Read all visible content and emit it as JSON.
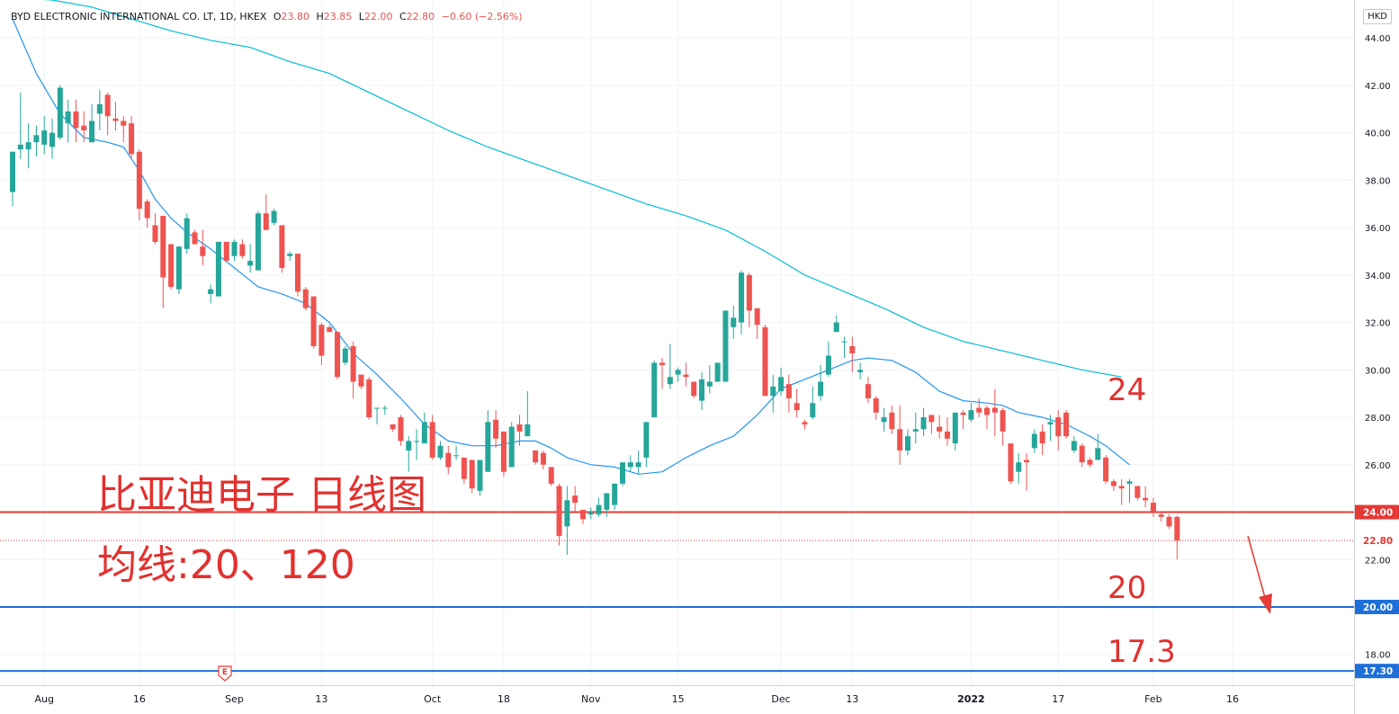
{
  "legend": {
    "symbol": "BYD ELECTRONIC INTERNATIONAL CO. LT, 1D, HKEX",
    "o_label": "O",
    "o_val": "23.80",
    "h_label": "H",
    "h_val": "23.85",
    "l_label": "L",
    "l_val": "22.00",
    "c_label": "C",
    "c_val": "22.80",
    "change": "−0.60 (−2.56%)"
  },
  "currency": "HKD",
  "annotations": {
    "title_cn": "比亚迪电子 日线图",
    "ma_cn": "均线:20、120",
    "label_24": "24",
    "label_20": "20",
    "label_17": "17.3"
  },
  "earnings_marker": "E",
  "colors": {
    "up": "#26a69a",
    "down": "#ef5350",
    "ma20": "#2196f3",
    "ma120": "#00bcd4",
    "red_line": "#e53935",
    "blue_line": "#1e6fd9",
    "annotation": "#e2312e"
  },
  "chart_data": {
    "type": "candlestick",
    "title": "",
    "ylim": [
      16.7,
      45.6
    ],
    "y_ticks": [
      18,
      20,
      22,
      24,
      26,
      28,
      30,
      32,
      34,
      36,
      38,
      40,
      42,
      44
    ],
    "y_tick_labels": [
      "18.00",
      "20.00",
      "22.00",
      "24.00",
      "26.00",
      "28.00",
      "30.00",
      "32.00",
      "34.00",
      "36.00",
      "38.00",
      "40.00",
      "42.00",
      "44.00"
    ],
    "x_ticks": [
      {
        "bar": 4,
        "label": "Aug"
      },
      {
        "bar": 16,
        "label": "16"
      },
      {
        "bar": 28,
        "label": "Sep"
      },
      {
        "bar": 39,
        "label": "13"
      },
      {
        "bar": 53,
        "label": "Oct"
      },
      {
        "bar": 62,
        "label": "18"
      },
      {
        "bar": 73,
        "label": "Nov"
      },
      {
        "bar": 84,
        "label": "15"
      },
      {
        "bar": 97,
        "label": "Dec"
      },
      {
        "bar": 106,
        "label": "13"
      },
      {
        "bar": 121,
        "label": "2022"
      },
      {
        "bar": 132,
        "label": "17"
      },
      {
        "bar": 144,
        "label": "Feb"
      },
      {
        "bar": 154,
        "label": "16"
      }
    ],
    "candles": [
      [
        37.5,
        39.2,
        36.9,
        39.2
      ],
      [
        39.3,
        41.7,
        38.9,
        39.5
      ],
      [
        39.3,
        40.4,
        38.5,
        39.6
      ],
      [
        39.6,
        40.3,
        39.0,
        39.9
      ],
      [
        39.5,
        40.7,
        39.1,
        40.1
      ],
      [
        39.4,
        40.6,
        38.9,
        40.0
      ],
      [
        39.8,
        42.0,
        39.7,
        41.9
      ],
      [
        40.4,
        41.4,
        39.6,
        40.9
      ],
      [
        40.9,
        41.4,
        39.6,
        40.2
      ],
      [
        40.3,
        40.9,
        39.6,
        40.1
      ],
      [
        39.6,
        41.2,
        39.6,
        40.5
      ],
      [
        40.8,
        41.8,
        40.1,
        41.2
      ],
      [
        41.6,
        41.7,
        39.9,
        40.7
      ],
      [
        40.6,
        41.3,
        40.1,
        40.5
      ],
      [
        40.5,
        40.7,
        39.6,
        40.3
      ],
      [
        40.4,
        40.7,
        38.9,
        39.1
      ],
      [
        39.2,
        39.3,
        36.3,
        36.8
      ],
      [
        37.1,
        37.2,
        36.0,
        36.4
      ],
      [
        36.1,
        36.6,
        35.3,
        35.4
      ],
      [
        36.5,
        36.4,
        32.6,
        33.9
      ],
      [
        35.3,
        35.3,
        33.4,
        33.5
      ],
      [
        33.4,
        35.2,
        33.2,
        35.2
      ],
      [
        35.1,
        36.6,
        34.9,
        36.4
      ],
      [
        35.8,
        35.9,
        35.3,
        35.3
      ],
      [
        35.2,
        35.9,
        34.4,
        34.8
      ],
      [
        33.2,
        33.6,
        32.8,
        33.4
      ],
      [
        33.1,
        35.4,
        33.1,
        35.4
      ],
      [
        35.4,
        35.4,
        34.6,
        34.6
      ],
      [
        34.8,
        35.5,
        34.6,
        35.4
      ],
      [
        35.3,
        35.5,
        34.7,
        34.8
      ],
      [
        34.4,
        35.3,
        34.1,
        34.6
      ],
      [
        34.2,
        36.7,
        34.2,
        36.6
      ],
      [
        36.6,
        37.4,
        35.9,
        35.9
      ],
      [
        36.2,
        36.8,
        36.1,
        36.7
      ],
      [
        36.1,
        36.1,
        34.1,
        34.3
      ],
      [
        34.8,
        35.0,
        34.6,
        34.9
      ],
      [
        34.9,
        34.9,
        33.1,
        33.3
      ],
      [
        33.4,
        33.5,
        32.5,
        32.6
      ],
      [
        33.1,
        33.1,
        30.9,
        31.0
      ],
      [
        31.9,
        32.0,
        30.2,
        30.6
      ],
      [
        31.8,
        31.9,
        31.6,
        31.6
      ],
      [
        31.6,
        31.6,
        29.6,
        29.7
      ],
      [
        30.3,
        31.0,
        30.2,
        30.9
      ],
      [
        31.0,
        31.2,
        28.8,
        29.5
      ],
      [
        29.8,
        29.7,
        29.2,
        29.3
      ],
      [
        29.6,
        29.7,
        27.9,
        28.0
      ],
      [
        28.4,
        28.4,
        27.7,
        28.4
      ],
      [
        28.4,
        28.5,
        28.1,
        28.4
      ],
      [
        27.7,
        27.7,
        27.4,
        27.5
      ],
      [
        28.0,
        28.1,
        26.8,
        27.0
      ],
      [
        26.6,
        27.2,
        25.7,
        27.0
      ],
      [
        27.0,
        27.5,
        26.2,
        27.0
      ],
      [
        26.9,
        28.2,
        26.9,
        27.8
      ],
      [
        27.8,
        28.1,
        26.2,
        26.3
      ],
      [
        26.3,
        27.0,
        26.2,
        26.8
      ],
      [
        26.5,
        26.8,
        25.6,
        25.9
      ],
      [
        26.4,
        26.8,
        26.2,
        26.4
      ],
      [
        26.3,
        26.3,
        25.2,
        25.4
      ],
      [
        26.2,
        26.2,
        24.8,
        25.0
      ],
      [
        24.9,
        26.2,
        24.7,
        26.2
      ],
      [
        25.7,
        28.3,
        25.7,
        27.8
      ],
      [
        27.9,
        28.3,
        26.7,
        27.1
      ],
      [
        27.4,
        27.4,
        25.5,
        25.7
      ],
      [
        25.9,
        27.8,
        25.9,
        27.6
      ],
      [
        27.7,
        28.1,
        26.8,
        27.4
      ],
      [
        27.2,
        29.1,
        27.2,
        27.7
      ],
      [
        26.6,
        26.6,
        26.0,
        26.1
      ],
      [
        26.5,
        26.6,
        25.8,
        26.0
      ],
      [
        25.9,
        25.9,
        25.1,
        25.2
      ],
      [
        25.1,
        25.2,
        22.6,
        23.0
      ],
      [
        23.4,
        25.1,
        22.2,
        24.5
      ],
      [
        24.7,
        25.1,
        24.0,
        24.4
      ],
      [
        24.1,
        24.1,
        23.5,
        23.7
      ],
      [
        23.9,
        24.2,
        23.7,
        24.0
      ],
      [
        23.9,
        24.6,
        23.8,
        24.3
      ],
      [
        24.1,
        24.7,
        23.8,
        24.8
      ],
      [
        24.3,
        25.2,
        24.1,
        25.2
      ],
      [
        25.2,
        26.1,
        25.1,
        26.1
      ],
      [
        25.9,
        26.4,
        25.7,
        26.1
      ],
      [
        25.9,
        26.6,
        25.6,
        26.1
      ],
      [
        26.3,
        27.8,
        25.9,
        27.8
      ],
      [
        28.0,
        30.4,
        28.0,
        30.3
      ],
      [
        30.3,
        30.5,
        29.2,
        30.2
      ],
      [
        29.4,
        31.1,
        29.2,
        29.7
      ],
      [
        29.8,
        30.1,
        29.5,
        30.0
      ],
      [
        29.8,
        30.3,
        29.3,
        29.7
      ],
      [
        29.5,
        29.5,
        28.8,
        28.9
      ],
      [
        28.7,
        29.9,
        28.3,
        29.6
      ],
      [
        29.3,
        30.2,
        29.0,
        29.5
      ],
      [
        29.5,
        30.3,
        29.5,
        30.3
      ],
      [
        29.5,
        32.5,
        29.5,
        32.5
      ],
      [
        31.8,
        32.7,
        31.3,
        32.2
      ],
      [
        32.0,
        34.2,
        31.5,
        34.1
      ],
      [
        34.0,
        34.1,
        31.8,
        32.5
      ],
      [
        32.6,
        32.6,
        31.3,
        31.9
      ],
      [
        31.8,
        31.9,
        28.9,
        28.9
      ],
      [
        28.9,
        29.8,
        28.2,
        29.3
      ],
      [
        29.1,
        30.1,
        28.9,
        29.7
      ],
      [
        29.4,
        29.8,
        28.2,
        28.8
      ],
      [
        28.6,
        29.2,
        28.0,
        28.3
      ],
      [
        27.8,
        27.9,
        27.5,
        27.7
      ],
      [
        28.0,
        29.3,
        27.9,
        28.6
      ],
      [
        28.9,
        30.2,
        28.7,
        29.5
      ],
      [
        29.8,
        31.2,
        29.7,
        30.6
      ],
      [
        31.6,
        32.3,
        31.6,
        32.0
      ],
      [
        31.2,
        31.4,
        30.5,
        31.2
      ],
      [
        31.0,
        31.4,
        29.9,
        30.7
      ],
      [
        29.9,
        30.3,
        29.6,
        30.0
      ],
      [
        29.4,
        29.7,
        28.6,
        28.8
      ],
      [
        28.8,
        28.9,
        27.9,
        28.2
      ],
      [
        27.8,
        28.4,
        27.4,
        28.0
      ],
      [
        28.2,
        28.5,
        27.3,
        27.5
      ],
      [
        27.5,
        28.5,
        26.0,
        26.6
      ],
      [
        26.6,
        27.5,
        26.4,
        27.2
      ],
      [
        27.4,
        28.2,
        26.9,
        27.5
      ],
      [
        27.5,
        28.4,
        27.2,
        28.0
      ],
      [
        28.1,
        28.0,
        27.3,
        27.8
      ],
      [
        27.6,
        28.1,
        27.1,
        27.4
      ],
      [
        27.4,
        28.0,
        26.8,
        27.1
      ],
      [
        26.9,
        28.2,
        26.6,
        28.2
      ],
      [
        28.2,
        28.3,
        27.5,
        28.1
      ],
      [
        27.9,
        28.6,
        27.8,
        28.3
      ],
      [
        28.4,
        28.8,
        28.0,
        28.2
      ],
      [
        28.4,
        28.5,
        27.5,
        28.1
      ],
      [
        28.4,
        29.2,
        27.2,
        28.2
      ],
      [
        28.3,
        28.4,
        26.8,
        27.4
      ],
      [
        26.9,
        26.9,
        25.2,
        25.3
      ],
      [
        25.7,
        26.5,
        25.2,
        26.1
      ],
      [
        26.2,
        26.5,
        24.9,
        26.1
      ],
      [
        26.7,
        27.5,
        26.5,
        27.3
      ],
      [
        27.4,
        27.7,
        26.4,
        26.9
      ],
      [
        27.7,
        28.1,
        27.0,
        27.8
      ],
      [
        28.0,
        28.3,
        26.6,
        27.2
      ],
      [
        28.2,
        28.3,
        27.1,
        27.2
      ],
      [
        26.6,
        27.2,
        26.5,
        27.0
      ],
      [
        26.8,
        26.9,
        25.9,
        26.1
      ],
      [
        26.2,
        26.3,
        25.9,
        26.0
      ],
      [
        26.2,
        27.3,
        26.2,
        26.7
      ],
      [
        26.3,
        26.4,
        25.2,
        25.3
      ],
      [
        25.3,
        25.4,
        24.9,
        25.1
      ],
      [
        25.1,
        25.4,
        24.3,
        25.0
      ],
      [
        25.2,
        25.4,
        24.4,
        25.3
      ],
      [
        25.1,
        25.1,
        24.5,
        24.6
      ],
      [
        24.6,
        25.1,
        24.2,
        24.5
      ],
      [
        24.4,
        24.6,
        23.8,
        24.0
      ],
      [
        23.9,
        24.0,
        23.6,
        23.8
      ],
      [
        23.8,
        23.9,
        23.3,
        23.4
      ],
      [
        23.8,
        23.85,
        22.0,
        22.8
      ]
    ],
    "series": [
      {
        "name": "",
        "type": "ma20",
        "points": [
          [
            0,
            44.8
          ],
          [
            3,
            42.5
          ],
          [
            6,
            40.8
          ],
          [
            9,
            39.8
          ],
          [
            12,
            39.6
          ],
          [
            14,
            39.4
          ],
          [
            16,
            38.4
          ],
          [
            18,
            37.2
          ],
          [
            20,
            36.4
          ],
          [
            22,
            35.8
          ],
          [
            25,
            35.1
          ],
          [
            28,
            34.3
          ],
          [
            31,
            33.5
          ],
          [
            34,
            33.2
          ],
          [
            37,
            32.8
          ],
          [
            40,
            32.0
          ],
          [
            43,
            30.7
          ],
          [
            46,
            29.8
          ],
          [
            49,
            28.8
          ],
          [
            52,
            27.7
          ],
          [
            55,
            27.0
          ],
          [
            58,
            26.8
          ],
          [
            61,
            26.8
          ],
          [
            64,
            27.0
          ],
          [
            66,
            27.0
          ],
          [
            68,
            26.7
          ],
          [
            70,
            26.3
          ],
          [
            73,
            26.0
          ],
          [
            76,
            25.9
          ],
          [
            79,
            25.6
          ],
          [
            82,
            25.7
          ],
          [
            85,
            26.3
          ],
          [
            88,
            26.8
          ],
          [
            91,
            27.2
          ],
          [
            94,
            28.1
          ],
          [
            97,
            29.2
          ],
          [
            100,
            29.6
          ],
          [
            103,
            30.0
          ],
          [
            106,
            30.4
          ],
          [
            108,
            30.5
          ],
          [
            111,
            30.4
          ],
          [
            114,
            29.9
          ],
          [
            117,
            29.1
          ],
          [
            120,
            28.7
          ],
          [
            123,
            28.6
          ],
          [
            125,
            28.5
          ],
          [
            127,
            28.2
          ],
          [
            130,
            28.0
          ],
          [
            133,
            27.7
          ],
          [
            136,
            27.2
          ],
          [
            138,
            26.8
          ],
          [
            141,
            26.0
          ]
        ]
      },
      {
        "name": "",
        "type": "ma120",
        "points": [
          [
            0,
            45.7
          ],
          [
            5,
            45.6
          ],
          [
            10,
            45.3
          ],
          [
            15,
            44.8
          ],
          [
            20,
            44.3
          ],
          [
            25,
            43.9
          ],
          [
            30,
            43.6
          ],
          [
            35,
            43.0
          ],
          [
            40,
            42.5
          ],
          [
            45,
            41.7
          ],
          [
            50,
            40.9
          ],
          [
            55,
            40.1
          ],
          [
            60,
            39.4
          ],
          [
            65,
            38.8
          ],
          [
            70,
            38.2
          ],
          [
            75,
            37.6
          ],
          [
            80,
            37.0
          ],
          [
            85,
            36.5
          ],
          [
            90,
            35.9
          ],
          [
            95,
            35.0
          ],
          [
            100,
            34.0
          ],
          [
            105,
            33.3
          ],
          [
            110,
            32.6
          ],
          [
            115,
            31.8
          ],
          [
            120,
            31.2
          ],
          [
            125,
            30.8
          ],
          [
            130,
            30.4
          ],
          [
            135,
            30.0
          ],
          [
            140,
            29.7
          ]
        ]
      }
    ],
    "horizontal_lines": [
      {
        "value": 24.0,
        "label": "24.00",
        "style": "solid",
        "color": "#e53935"
      },
      {
        "value": 22.8,
        "label": "22.80",
        "style": "dotted",
        "color": "#e53935"
      },
      {
        "value": 20.0,
        "label": "20.00",
        "style": "solid",
        "color": "#1e6fd9"
      },
      {
        "value": 17.3,
        "label": "17.30",
        "style": "solid",
        "color": "#1e6fd9"
      }
    ]
  }
}
